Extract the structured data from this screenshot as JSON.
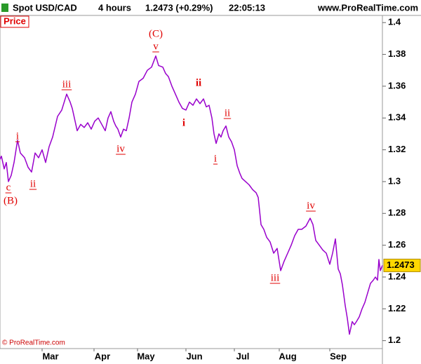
{
  "header": {
    "symbol": "Spot USD/CAD",
    "timeframe": "4 hours",
    "quote": "1.2473 (+0.29%)",
    "time": "22:05:13",
    "site": "www.ProRealTime.com"
  },
  "chart_data": {
    "type": "line",
    "panel_label": "Price",
    "copyright": "© ProRealTime.com",
    "series": [
      {
        "color": "#9900cc",
        "x": [
          0,
          2,
          6,
          9,
          12,
          16,
          20,
          25,
          29,
          35,
          40,
          45,
          50,
          55,
          60,
          65,
          70,
          75,
          82,
          88,
          95,
          100,
          103,
          106,
          110,
          115,
          120,
          125,
          130,
          135,
          140,
          145,
          150,
          154,
          158,
          162,
          165,
          168,
          172,
          176,
          180,
          184,
          188,
          193,
          198,
          204,
          210,
          216,
          222,
          226,
          232,
          236,
          240,
          245,
          250,
          255,
          260,
          265,
          270,
          275,
          280,
          285,
          290,
          294,
          298,
          302,
          305,
          308,
          312,
          315,
          318,
          322,
          326,
          330,
          334,
          338,
          342,
          345,
          350,
          355,
          360,
          365,
          368,
          372,
          376,
          380,
          385,
          390,
          395,
          400,
          405,
          410,
          415,
          420,
          425,
          430,
          436,
          442,
          446,
          450,
          455,
          460,
          465,
          470,
          474,
          478,
          482,
          485,
          488,
          492,
          495,
          498,
          502,
          505,
          508,
          512,
          516,
          520,
          524,
          528,
          532,
          535,
          538,
          540,
          542,
          545
        ],
        "values": [
          1.314,
          1.316,
          1.308,
          1.312,
          1.3,
          1.304,
          1.312,
          1.326,
          1.318,
          1.315,
          1.309,
          1.306,
          1.318,
          1.315,
          1.32,
          1.312,
          1.322,
          1.328,
          1.341,
          1.345,
          1.355,
          1.35,
          1.346,
          1.34,
          1.332,
          1.336,
          1.334,
          1.337,
          1.333,
          1.338,
          1.34,
          1.336,
          1.332,
          1.34,
          1.344,
          1.338,
          1.335,
          1.333,
          1.328,
          1.333,
          1.332,
          1.34,
          1.35,
          1.355,
          1.363,
          1.365,
          1.37,
          1.372,
          1.379,
          1.373,
          1.372,
          1.368,
          1.366,
          1.36,
          1.355,
          1.35,
          1.346,
          1.345,
          1.35,
          1.348,
          1.352,
          1.349,
          1.352,
          1.347,
          1.348,
          1.34,
          1.33,
          1.324,
          1.33,
          1.328,
          1.332,
          1.335,
          1.328,
          1.325,
          1.32,
          1.31,
          1.305,
          1.302,
          1.3,
          1.298,
          1.295,
          1.293,
          1.29,
          1.273,
          1.27,
          1.265,
          1.262,
          1.255,
          1.258,
          1.244,
          1.25,
          1.255,
          1.26,
          1.266,
          1.27,
          1.27,
          1.272,
          1.277,
          1.273,
          1.263,
          1.26,
          1.257,
          1.255,
          1.248,
          1.255,
          1.264,
          1.245,
          1.242,
          1.235,
          1.222,
          1.214,
          1.204,
          1.212,
          1.21,
          1.212,
          1.215,
          1.22,
          1.224,
          1.23,
          1.236,
          1.238,
          1.24,
          1.238,
          1.251,
          1.244,
          1.2473
        ]
      }
    ],
    "last_value": 1.2473,
    "xlim": [
      0,
      545
    ],
    "xticks": [
      {
        "value": 60,
        "label": "Mar"
      },
      {
        "value": 134,
        "label": "Apr"
      },
      {
        "value": 196,
        "label": "May"
      },
      {
        "value": 265,
        "label": "Jun"
      },
      {
        "value": 334,
        "label": "Jul"
      },
      {
        "value": 398,
        "label": "Aug"
      },
      {
        "value": 470,
        "label": "Sep"
      }
    ],
    "ylim": [
      1.195,
      1.4045
    ],
    "yticks": [
      1.2,
      1.22,
      1.24,
      1.26,
      1.28,
      1.3,
      1.32,
      1.34,
      1.36,
      1.38,
      1.4
    ],
    "annotations": [
      "c",
      "(B)",
      "i",
      "ii",
      "iii",
      "iv",
      "(C)",
      "v",
      "ii",
      "i",
      "i",
      "ii",
      "iii",
      "iv"
    ]
  }
}
